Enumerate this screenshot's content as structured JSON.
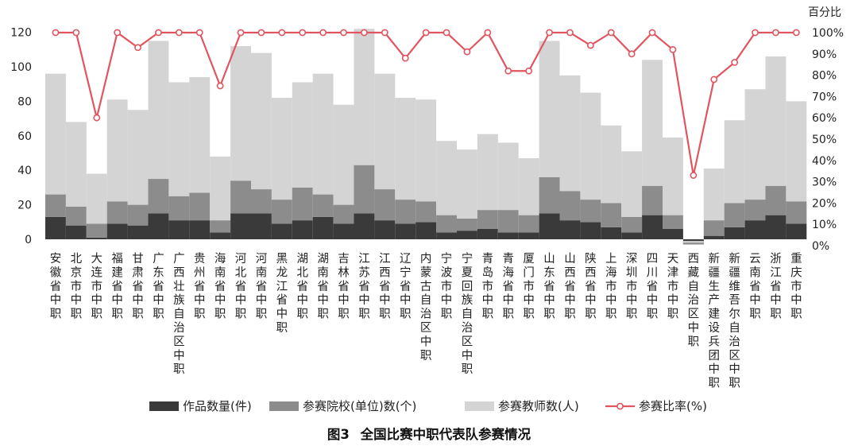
{
  "chart_data": {
    "type": "bar",
    "stacked": true,
    "categories": [
      "安徽省中职",
      "北京市中职",
      "大连市中职",
      "福建省中职",
      "甘肃省中职",
      "广东省中职",
      "广西壮族自治区中职",
      "贵州省中职",
      "海南省中职",
      "河北省中职",
      "河南省中职",
      "黑龙江省中职",
      "湖北省中职",
      "湖南省中职",
      "吉林省中职",
      "江苏省中职",
      "江西省中职",
      "辽宁省中职",
      "内蒙古自治区中职",
      "宁波市中职",
      "宁夏回族自治区中职",
      "青岛市中职",
      "青海省中职",
      "厦门市中职",
      "山东省中职",
      "山西省中职",
      "陕西省中职",
      "上海市中职",
      "深圳市中职",
      "四川省中职",
      "天津市中职",
      "西藏自治区中职",
      "新疆生产建设兵团中职",
      "新疆维吾尔自治区中职",
      "云南省中职",
      "浙江省中职",
      "重庆市中职"
    ],
    "series": [
      {
        "name": "作品数量(件)",
        "color": "#3a3a3a",
        "axis": "left",
        "values": [
          13,
          8,
          1,
          9,
          8,
          15,
          11,
          11,
          4,
          15,
          15,
          9,
          11,
          13,
          9,
          15,
          11,
          9,
          10,
          4,
          5,
          6,
          4,
          4,
          15,
          11,
          10,
          7,
          4,
          14,
          6,
          -3,
          2,
          7,
          11,
          14,
          9
        ]
      },
      {
        "name": "参赛院校(单位)数(个)",
        "color": "#8c8c8c",
        "axis": "left",
        "values": [
          13,
          11,
          8,
          13,
          12,
          20,
          14,
          16,
          7,
          19,
          14,
          14,
          19,
          13,
          11,
          28,
          18,
          14,
          12,
          10,
          7,
          11,
          13,
          10,
          21,
          17,
          13,
          14,
          9,
          17,
          8,
          2,
          9,
          14,
          12,
          17,
          13
        ]
      },
      {
        "name": "参赛教师数(人)",
        "color": "#d4d4d4",
        "axis": "left",
        "values": [
          70,
          49,
          29,
          59,
          55,
          80,
          66,
          67,
          37,
          78,
          79,
          59,
          61,
          70,
          58,
          79,
          67,
          59,
          59,
          43,
          40,
          44,
          39,
          33,
          79,
          67,
          62,
          45,
          38,
          73,
          45,
          -1,
          30,
          48,
          64,
          75,
          58
        ]
      },
      {
        "name": "参赛比率(%)",
        "color": "#e0555f",
        "axis": "right",
        "type": "line",
        "values": [
          100,
          100,
          60,
          100,
          93,
          100,
          100,
          100,
          75,
          100,
          100,
          100,
          100,
          100,
          100,
          100,
          100,
          88,
          100,
          100,
          91,
          100,
          82,
          82,
          100,
          100,
          94,
          100,
          90,
          100,
          92,
          33,
          78,
          86,
          100,
          100,
          100
        ]
      }
    ],
    "left_axis": {
      "ticks": [
        "0",
        "20",
        "40",
        "60",
        "80",
        "100",
        "120"
      ],
      "ylim": [
        -5,
        125
      ]
    },
    "right_axis": {
      "title": "百分比",
      "ticks": [
        "0%",
        "10%",
        "20%",
        "30%",
        "40%",
        "50%",
        "60%",
        "70%",
        "80%",
        "90%",
        "100%"
      ],
      "ylim": [
        0,
        100
      ]
    },
    "legend": {
      "position": "bottom"
    }
  },
  "caption": {
    "figure_no": "图3",
    "title": "全国比赛中职代表队参赛情况"
  }
}
